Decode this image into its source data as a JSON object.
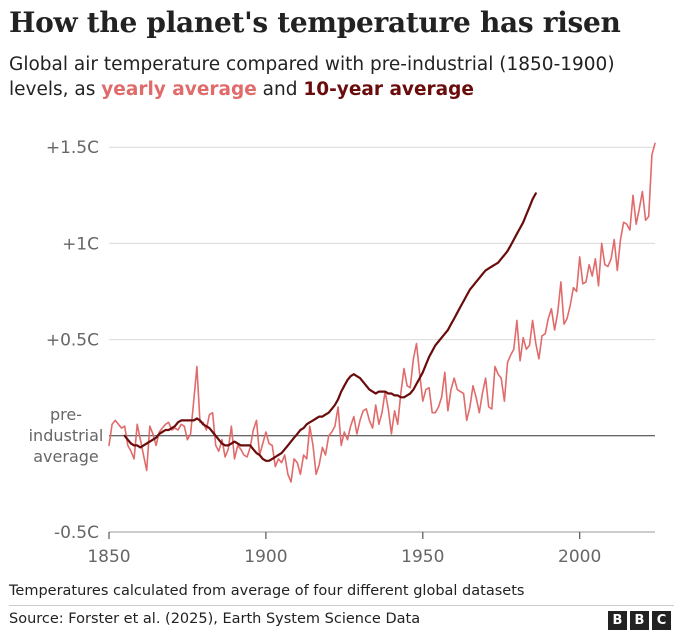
{
  "chart_data": {
    "type": "line",
    "title": "How the planet's temperature has risen",
    "subtitle": {
      "prefix": "Global air temperature compared with pre-industrial (1850-1900) levels, as ",
      "yearly_label": "yearly average",
      "middle": " and ",
      "decadal_label": "10-year average"
    },
    "xlabel": "",
    "ylabel": "",
    "xlim": [
      1850,
      2024
    ],
    "ylim": [
      -0.5,
      1.6
    ],
    "x_ticks": [
      {
        "value": 1850,
        "label": "1850"
      },
      {
        "value": 1900,
        "label": "1900"
      },
      {
        "value": 1950,
        "label": "1950"
      },
      {
        "value": 2000,
        "label": "2000"
      }
    ],
    "y_ticks": [
      {
        "value": 1.5,
        "label": "+1.5C"
      },
      {
        "value": 1.0,
        "label": "+1C"
      },
      {
        "value": 0.5,
        "label": "+0.5C"
      },
      {
        "value": -0.5,
        "label": "-0.5C"
      }
    ],
    "reference_line": {
      "value": 0,
      "label_lines": [
        "pre-",
        "industrial",
        "average"
      ]
    },
    "grid": true,
    "legend": "in subtitle",
    "colors": {
      "yearly": "#e06b6b",
      "decadal": "#6b0c0c",
      "grid": "#d9d9d9",
      "zero_line": "#333333"
    },
    "series": [
      {
        "name": "yearly average",
        "x_start": 1850,
        "values": [
          -0.05,
          0.06,
          0.08,
          0.06,
          0.04,
          0.05,
          -0.05,
          -0.08,
          -0.12,
          0.06,
          -0.02,
          -0.1,
          -0.18,
          0.05,
          0.01,
          -0.05,
          0.02,
          0.04,
          0.06,
          0.07,
          0.03,
          0.04,
          0.03,
          0.06,
          0.05,
          -0.02,
          0.01,
          0.18,
          0.36,
          0.07,
          0.07,
          0.03,
          0.11,
          0.12,
          -0.05,
          -0.08,
          -0.02,
          -0.11,
          -0.07,
          0.05,
          -0.12,
          -0.05,
          -0.07,
          -0.1,
          -0.11,
          -0.06,
          0.03,
          0.08,
          -0.1,
          -0.04,
          0.02,
          -0.04,
          -0.05,
          -0.16,
          -0.12,
          -0.14,
          -0.1,
          -0.2,
          -0.24,
          -0.12,
          -0.14,
          -0.2,
          -0.1,
          -0.12,
          0.05,
          -0.05,
          -0.2,
          -0.15,
          -0.06,
          -0.1,
          0.0,
          0.02,
          0.05,
          0.15,
          -0.05,
          0.02,
          -0.02,
          0.05,
          0.1,
          0.01,
          0.08,
          0.13,
          0.14,
          0.08,
          0.04,
          0.16,
          0.06,
          0.12,
          0.23,
          0.14,
          0.01,
          0.13,
          0.06,
          0.22,
          0.35,
          0.26,
          0.25,
          0.4,
          0.48,
          0.32,
          0.18,
          0.24,
          0.25,
          0.12,
          0.12,
          0.15,
          0.2,
          0.33,
          0.13,
          0.24,
          0.3,
          0.24,
          0.23,
          0.22,
          0.08,
          0.15,
          0.26,
          0.2,
          0.12,
          0.22,
          0.3,
          0.15,
          0.14,
          0.36,
          0.32,
          0.3,
          0.18,
          0.38,
          0.42,
          0.45,
          0.6,
          0.39,
          0.51,
          0.45,
          0.47,
          0.6,
          0.48,
          0.4,
          0.52,
          0.53,
          0.61,
          0.66,
          0.55,
          0.64,
          0.8,
          0.58,
          0.61,
          0.68,
          0.77,
          0.75,
          0.93,
          0.79,
          0.8,
          0.89,
          0.83,
          0.92,
          0.78,
          1.0,
          0.89,
          0.88,
          0.92,
          1.02,
          0.86,
          1.02,
          1.11,
          1.1,
          1.07,
          1.25,
          1.1,
          1.18,
          1.27,
          1.12,
          1.14,
          1.46,
          1.52
        ]
      },
      {
        "name": "10-year average",
        "x_start": 1855,
        "values": [
          0.0,
          -0.02,
          -0.04,
          -0.05,
          -0.05,
          -0.06,
          -0.05,
          -0.04,
          -0.03,
          -0.02,
          -0.01,
          0.01,
          0.02,
          0.03,
          0.03,
          0.04,
          0.05,
          0.07,
          0.08,
          0.08,
          0.08,
          0.08,
          0.08,
          0.09,
          0.08,
          0.06,
          0.05,
          0.04,
          0.02,
          0.0,
          -0.02,
          -0.04,
          -0.05,
          -0.05,
          -0.04,
          -0.03,
          -0.04,
          -0.05,
          -0.05,
          -0.05,
          -0.05,
          -0.07,
          -0.09,
          -0.1,
          -0.12,
          -0.13,
          -0.13,
          -0.12,
          -0.11,
          -0.1,
          -0.09,
          -0.07,
          -0.05,
          -0.03,
          -0.01,
          0.01,
          0.03,
          0.04,
          0.06,
          0.07,
          0.08,
          0.09,
          0.1,
          0.1,
          0.11,
          0.12,
          0.14,
          0.16,
          0.19,
          0.23,
          0.26,
          0.29,
          0.31,
          0.32,
          0.31,
          0.3,
          0.28,
          0.26,
          0.24,
          0.23,
          0.22,
          0.23,
          0.23,
          0.23,
          0.22,
          0.22,
          0.21,
          0.21,
          0.2,
          0.2,
          0.21,
          0.22,
          0.24,
          0.27,
          0.3,
          0.33,
          0.37,
          0.41,
          0.44,
          0.47,
          0.49,
          0.51,
          0.53,
          0.55,
          0.58,
          0.61,
          0.64,
          0.67,
          0.7,
          0.73,
          0.76,
          0.78,
          0.8,
          0.82,
          0.84,
          0.86,
          0.87,
          0.88,
          0.89,
          0.9,
          0.92,
          0.94,
          0.96,
          0.99,
          1.02,
          1.05,
          1.08,
          1.11,
          1.15,
          1.19,
          1.23,
          1.26
        ]
      }
    ],
    "note": "Temperatures calculated from average of four different global datasets",
    "source": "Source: Forster et al. (2025), Earth System Science Data",
    "logo_letters": [
      "B",
      "B",
      "C"
    ]
  }
}
